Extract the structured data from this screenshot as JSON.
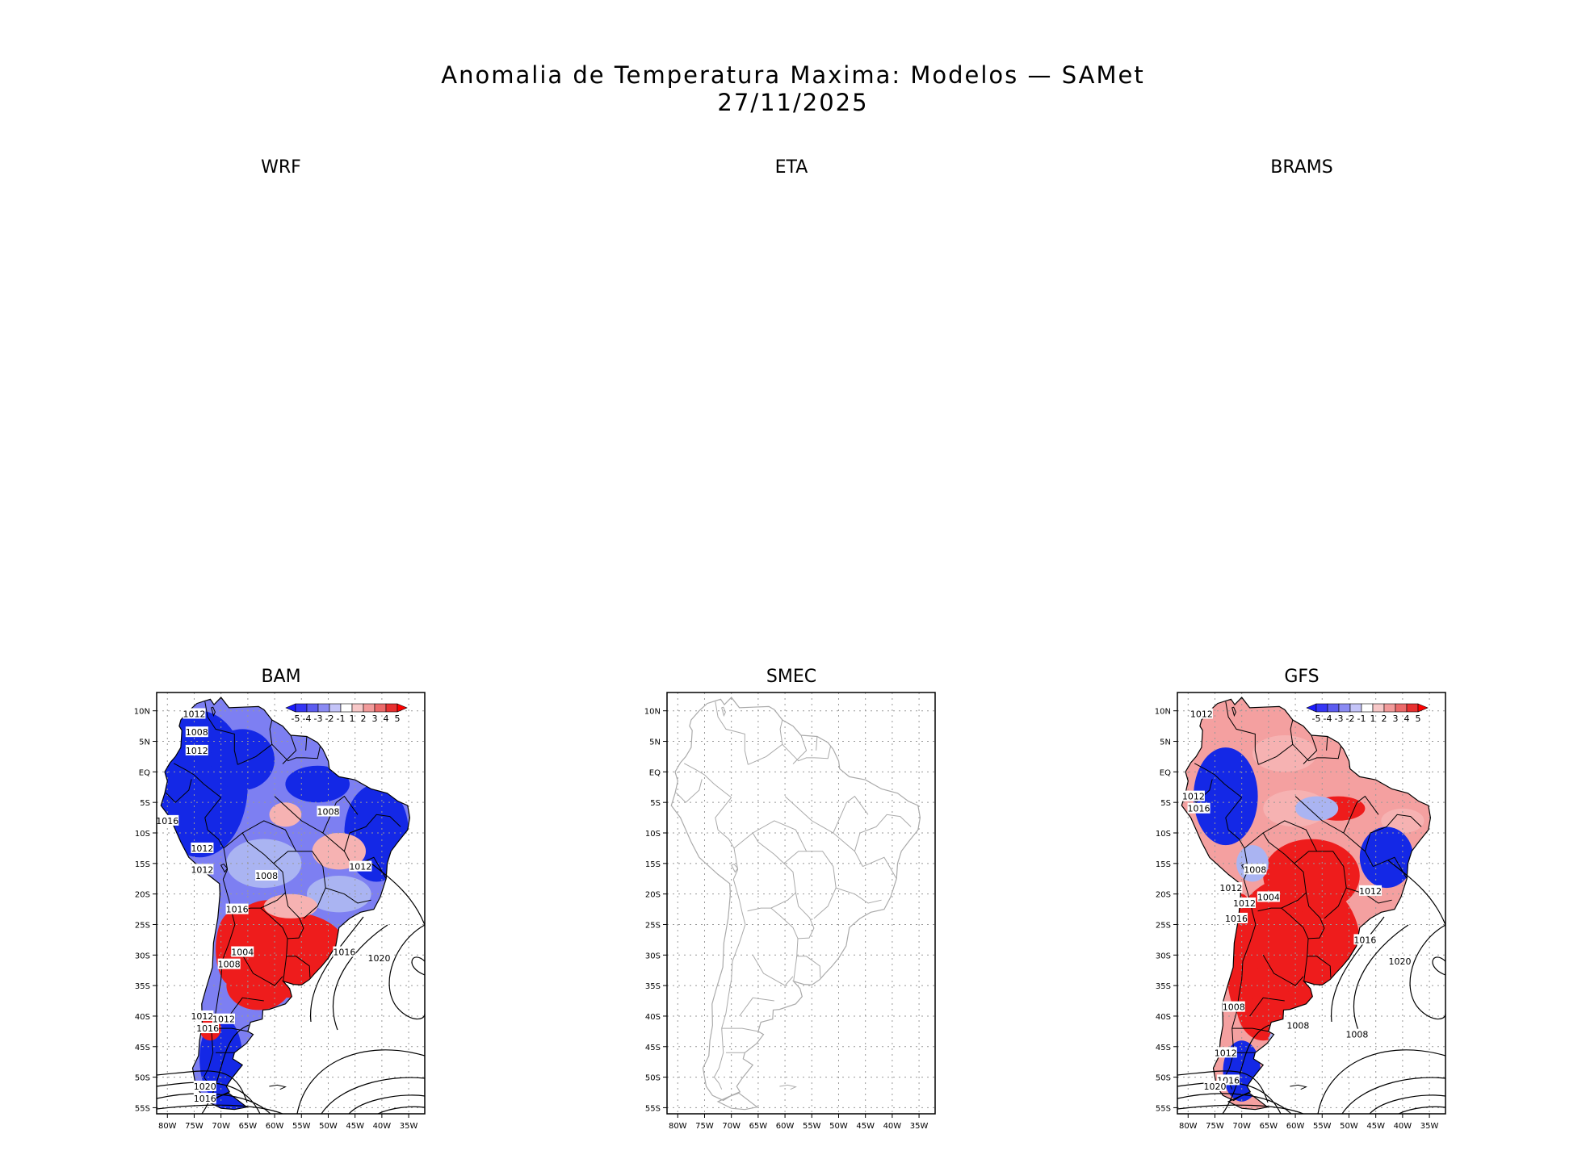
{
  "title": "Anomalia de Temperatura Maxima: Modelos — SAMet",
  "date": "27/11/2025",
  "panels": [
    {
      "name": "WRF",
      "has_map": false
    },
    {
      "name": "ETA",
      "has_map": false
    },
    {
      "name": "BRAMS",
      "has_map": false
    },
    {
      "name": "BAM",
      "has_map": true,
      "shaded": true
    },
    {
      "name": "SMEC",
      "has_map": true,
      "shaded": false
    },
    {
      "name": "GFS",
      "has_map": true,
      "shaded": true
    }
  ],
  "lat_labels": [
    "10N",
    "5N",
    "EQ",
    "5S",
    "10S",
    "15S",
    "20S",
    "25S",
    "30S",
    "35S",
    "40S",
    "45S",
    "50S",
    "55S"
  ],
  "lon_labels": [
    "80W",
    "75W",
    "70W",
    "65W",
    "60W",
    "55W",
    "50W",
    "45W",
    "40W",
    "35W"
  ],
  "colorbar": {
    "labels": [
      "-5",
      "-4",
      "-3",
      "-2",
      "-1",
      "1",
      "2",
      "3",
      "4",
      "5"
    ],
    "colors": [
      "#1a1aff",
      "#3535f5",
      "#5c5cf0",
      "#8a8af3",
      "#c4c4f8",
      "#ffffff",
      "#f7c8c8",
      "#f29a9a",
      "#ec6a6a",
      "#e83030",
      "#ff0000"
    ]
  },
  "colors": {
    "warm": "#ee1c1c",
    "cold": "#1428e6",
    "warm_light": "#f6b2b2",
    "cold_light": "#aab4f2",
    "coast_gray": "#aaaaaa"
  },
  "chart_data": [
    {
      "type": "map",
      "title": "BAM",
      "variable": "Anomalia de Temperatura Maxima (C) with sea-level pressure isobars (hPa)",
      "lon_range": [
        -82,
        -32
      ],
      "lat_range": [
        -56,
        13
      ],
      "contour_labels": [
        {
          "value": "1012",
          "lon": -75,
          "lat": 9.5
        },
        {
          "value": "1008",
          "lon": -74.5,
          "lat": 6.5
        },
        {
          "value": "1012",
          "lon": -74.5,
          "lat": 3.5
        },
        {
          "value": "1008",
          "lon": -50,
          "lat": -6.5
        },
        {
          "value": "1016",
          "lon": -80,
          "lat": -8
        },
        {
          "value": "1012",
          "lon": -73.5,
          "lat": -12.5
        },
        {
          "value": "1012",
          "lon": -73.5,
          "lat": -16
        },
        {
          "value": "1008",
          "lon": -61.5,
          "lat": -17
        },
        {
          "value": "1012",
          "lon": -44,
          "lat": -15.5
        },
        {
          "value": "1016",
          "lon": -67,
          "lat": -22.5
        },
        {
          "value": "1004",
          "lon": -66,
          "lat": -29.5
        },
        {
          "value": "1016",
          "lon": -47,
          "lat": -29.5
        },
        {
          "value": "1008",
          "lon": -68.5,
          "lat": -31.5
        },
        {
          "value": "1020",
          "lon": -40.5,
          "lat": -30.5
        },
        {
          "value": "1012",
          "lon": -73.5,
          "lat": -40
        },
        {
          "value": "1012",
          "lon": -69.5,
          "lat": -40.5
        },
        {
          "value": "1016",
          "lon": -72.5,
          "lat": -42
        },
        {
          "value": "1020",
          "lon": -73,
          "lat": -51.5
        },
        {
          "value": "1016",
          "lon": -73,
          "lat": -53.5
        }
      ]
    },
    {
      "type": "map",
      "title": "SMEC",
      "variable": "Anomalia de Temperatura Maxima (no data shown)",
      "lon_range": [
        -82,
        -32
      ],
      "lat_range": [
        -56,
        13
      ]
    },
    {
      "type": "map",
      "title": "GFS",
      "variable": "Anomalia de Temperatura Maxima (C) with sea-level pressure isobars (hPa)",
      "lon_range": [
        -82,
        -32
      ],
      "lat_range": [
        -56,
        13
      ],
      "contour_labels": [
        {
          "value": "1012",
          "lon": -77.5,
          "lat": 9.5
        },
        {
          "value": "1012",
          "lon": -79,
          "lat": -4
        },
        {
          "value": "1016",
          "lon": -78,
          "lat": -6
        },
        {
          "value": "1008",
          "lon": -67.5,
          "lat": -16
        },
        {
          "value": "1012",
          "lon": -72,
          "lat": -19
        },
        {
          "value": "1004",
          "lon": -65,
          "lat": -20.5
        },
        {
          "value": "1012",
          "lon": -69.5,
          "lat": -21.5
        },
        {
          "value": "1016",
          "lon": -71,
          "lat": -24
        },
        {
          "value": "1012",
          "lon": -46,
          "lat": -19.5
        },
        {
          "value": "1016",
          "lon": -47,
          "lat": -27.5
        },
        {
          "value": "1020",
          "lon": -40.5,
          "lat": -31
        },
        {
          "value": "1008",
          "lon": -71.5,
          "lat": -38.5
        },
        {
          "value": "1008",
          "lon": -59.5,
          "lat": -41.5
        },
        {
          "value": "1008",
          "lon": -48.5,
          "lat": -43
        },
        {
          "value": "1012",
          "lon": -73,
          "lat": -46
        },
        {
          "value": "1016",
          "lon": -72.5,
          "lat": -50.5
        },
        {
          "value": "1020",
          "lon": -75,
          "lat": -51.5
        }
      ]
    }
  ]
}
